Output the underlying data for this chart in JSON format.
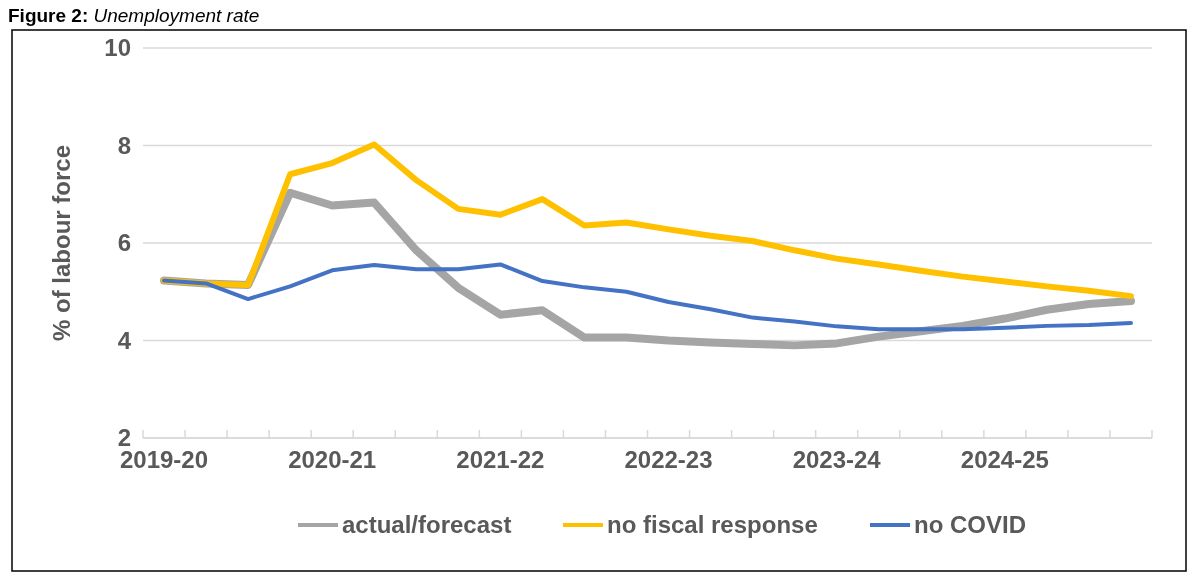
{
  "chart_data": {
    "type": "line",
    "title": "Figure 2: Unemployment rate",
    "ylabel": "% of labour force",
    "categories": [
      "2019-20",
      null,
      null,
      null,
      "2020-21",
      null,
      null,
      null,
      "2021-22",
      null,
      null,
      null,
      "2022-23",
      null,
      null,
      null,
      "2023-24",
      null,
      null,
      null,
      "2024-25",
      null,
      null,
      null
    ],
    "series": [
      {
        "name": "actual/forecast",
        "color": "#a5a5a5",
        "values": [
          5.23,
          5.17,
          5.14,
          7.03,
          6.77,
          6.83,
          5.85,
          5.08,
          4.53,
          4.62,
          4.06,
          4.06,
          4.0,
          3.96,
          3.93,
          3.9,
          3.94,
          4.08,
          4.19,
          4.3,
          4.45,
          4.63,
          4.75,
          4.81
        ]
      },
      {
        "name": "no fiscal response",
        "color": "#ffc000",
        "values": [
          5.23,
          5.17,
          5.14,
          7.41,
          7.64,
          8.02,
          7.29,
          6.7,
          6.58,
          6.9,
          6.36,
          6.42,
          6.28,
          6.15,
          6.04,
          5.85,
          5.68,
          5.56,
          5.43,
          5.31,
          5.21,
          5.11,
          5.02,
          4.91
        ]
      },
      {
        "name": "no COVID",
        "color": "#4472c4",
        "values": [
          5.23,
          5.17,
          4.85,
          5.11,
          5.44,
          5.55,
          5.46,
          5.46,
          5.56,
          5.22,
          5.09,
          5.0,
          4.79,
          4.64,
          4.47,
          4.39,
          4.29,
          4.23,
          4.23,
          4.23,
          4.26,
          4.3,
          4.32,
          4.36
        ]
      }
    ],
    "ylim": [
      2,
      10
    ],
    "yticks": [
      2,
      4,
      6,
      8,
      10
    ],
    "grid": "y",
    "legend": "bottom",
    "marker": "none",
    "line_style": "solid"
  }
}
